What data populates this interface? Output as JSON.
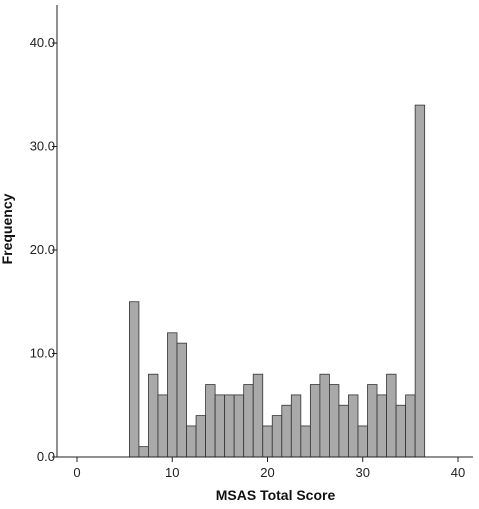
{
  "chart_data": {
    "type": "bar",
    "title": "",
    "xlabel": "MSAS Total Score",
    "ylabel": "Frequency",
    "xlim": [
      -5,
      41
    ],
    "ylim": [
      0,
      43
    ],
    "x_ticks": [
      0,
      10,
      20,
      30,
      40
    ],
    "x_tick_labels": [
      "0",
      "10",
      "20",
      "30",
      "40"
    ],
    "y_ticks": [
      0,
      10,
      20,
      30,
      40
    ],
    "y_tick_labels": [
      "0.0",
      "10.0",
      "20.0",
      "30.0",
      "40.0"
    ],
    "bin_width": 1,
    "x": [
      6,
      7,
      8,
      9,
      10,
      11,
      12,
      13,
      14,
      15,
      16,
      17,
      18,
      19,
      20,
      21,
      22,
      23,
      24,
      25,
      26,
      27,
      28,
      29,
      30,
      31,
      32,
      33,
      34,
      35,
      36
    ],
    "values": [
      15,
      1,
      8,
      6,
      12,
      11,
      3,
      4,
      7,
      6,
      6,
      6,
      7,
      8,
      3,
      4,
      5,
      6,
      3,
      7,
      8,
      7,
      5,
      6,
      3,
      7,
      6,
      8,
      5,
      6,
      34
    ],
    "grid": false,
    "colors": {
      "bar_fill": "#a9a9a9",
      "bar_stroke": "#333333"
    }
  }
}
